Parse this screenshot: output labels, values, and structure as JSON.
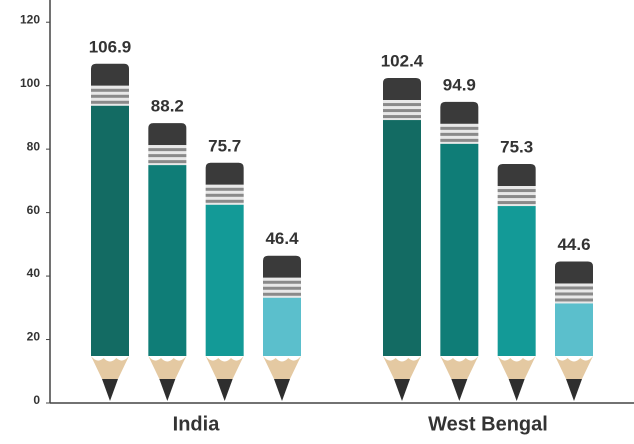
{
  "chart_data": {
    "type": "pencil-bar",
    "categories": [
      "India",
      "West Bengal"
    ],
    "series": [
      {
        "color": "#136b63",
        "values": [
          106.9,
          102.4
        ]
      },
      {
        "color": "#0f7d77",
        "values": [
          88.2,
          94.9
        ]
      },
      {
        "color": "#139a97",
        "values": [
          75.7,
          75.3
        ]
      },
      {
        "color": "#5bbfcc",
        "values": [
          46.4,
          44.6
        ]
      }
    ],
    "ylim": [
      0,
      127
    ],
    "yticks": [
      0,
      20,
      40,
      60,
      80,
      100,
      120
    ]
  }
}
